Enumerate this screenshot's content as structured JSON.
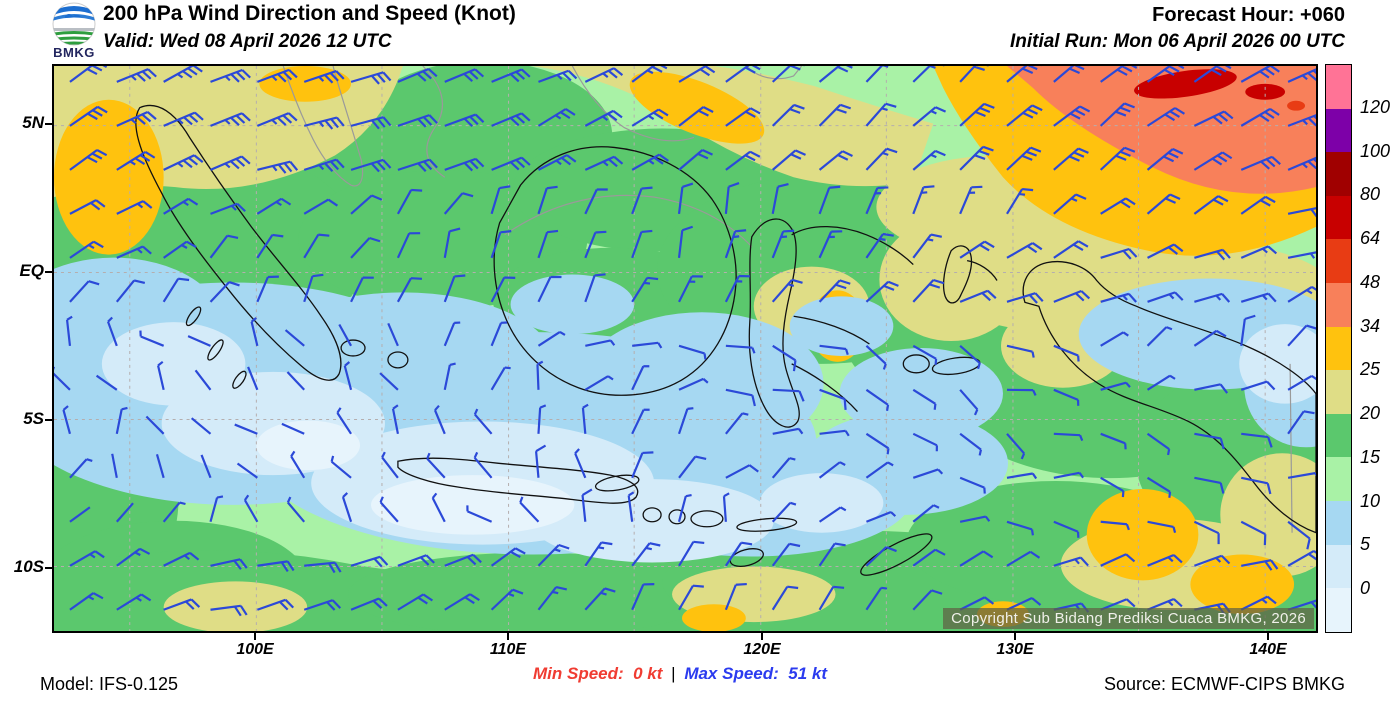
{
  "header": {
    "title": "200 hPa Wind Direction and Speed (Knot)",
    "valid": "Valid: Wed 08 April 2026 12 UTC",
    "forecast_hour": "Forecast Hour: +060",
    "initial_run": "Initial Run: Mon 06 April 2026 00 UTC",
    "logo_text": "BMKG"
  },
  "map": {
    "copyright": "Copyright Sub Bidang Prediksi Cuaca BMKG, 2026",
    "x_tick_labels": [
      "100E",
      "110E",
      "120E",
      "130E",
      "140E"
    ],
    "y_tick_labels": [
      "5N",
      "EQ",
      "5S",
      "10S"
    ]
  },
  "colorbar": {
    "colors": [
      "#ff7396",
      "#7d00a8",
      "#a00000",
      "#c80000",
      "#e83c14",
      "#f8805a",
      "#ffc20e",
      "#dfdd86",
      "#5bc86d",
      "#a9f2a6",
      "#a6d8f2",
      "#d4ebf9",
      "#e7f4fc"
    ],
    "labels": [
      "120",
      "100",
      "80",
      "64",
      "48",
      "34",
      "25",
      "20",
      "15",
      "10",
      "5",
      "0"
    ]
  },
  "palette": {
    "p34_48": "#f8805a",
    "p48_64": "#e83c14",
    "p64_80": "#c80000",
    "p25_34": "#ffc20e",
    "p20_25": "#dfdd86",
    "p15_20": "#5bc86d",
    "p10_15": "#a9f2a6",
    "p5_10": "#a6d8f2",
    "p0_5": "#d4ebf9",
    "pneg": "#e7f4fc"
  },
  "footer": {
    "model": "Model: IFS-0.125",
    "min_label": "Min Speed:",
    "min_value": "0 kt",
    "separator": "|",
    "max_label": "Max Speed:",
    "max_value": "51 kt",
    "source": "Source: ECMWF-CIPS BMKG"
  },
  "style": {
    "barb_color": "#2b49d8",
    "gridline_color": "#b5aeae",
    "coastline_color": "#111111",
    "foreign_coast_color": "#9a9a9a",
    "min_color": "#f03c32",
    "max_color": "#2b3bef"
  },
  "chart_data": {
    "type": "heatmap",
    "title": "200 hPa Wind Direction and Speed (Knot)",
    "valid_time": "Wed 08 April 2026 12 UTC",
    "initial_run": "Mon 06 April 2026 00 UTC",
    "forecast_hour": "+060",
    "units": "knot",
    "speed_levels_kt": [
      0,
      5,
      10,
      15,
      20,
      25,
      34,
      48,
      64,
      80,
      100,
      120
    ],
    "level_colors": [
      "#e7f4fc",
      "#d4ebf9",
      "#a6d8f2",
      "#a9f2a6",
      "#5bc86d",
      "#dfdd86",
      "#ffc20e",
      "#f8805a",
      "#e83c14",
      "#c80000",
      "#a00000",
      "#7d00a8",
      "#ff7396"
    ],
    "min_speed_kt": 0,
    "max_speed_kt": 51,
    "x_axis": {
      "label": "longitude",
      "ticks": [
        "100E",
        "110E",
        "120E",
        "130E",
        "140E"
      ]
    },
    "y_axis": {
      "label": "latitude",
      "ticks": [
        "5N",
        "EQ",
        "5S",
        "10S"
      ]
    },
    "legend_position": "right",
    "grid": "dashed gray every 5 degrees",
    "summary": "Light winds (0-10 kt, blue) across southern/central Indonesia; moderate 10-25 kt (green) elsewhere; 25-48 kt (amber/coral) band along northern edge, strongest >48 kt (red) near top-right around 135-140E north of 5N",
    "model": "IFS-0.125",
    "source": "ECMWF-CIPS BMKG"
  }
}
